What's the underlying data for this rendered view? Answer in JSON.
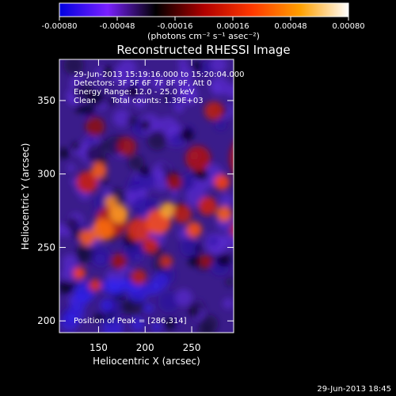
{
  "colorbar": {
    "tick_labels": [
      "-0.00080",
      "-0.00048",
      "-0.00016",
      "0.00016",
      "0.00048",
      "0.00080"
    ],
    "tick_values": [
      -0.0008,
      -0.00048,
      -0.00016,
      0.00016,
      0.00048,
      0.0008
    ],
    "range": [
      -0.0008,
      0.0008
    ],
    "units": "(photons cm⁻² s⁻¹ asec⁻²)",
    "colors": [
      "#0000e0",
      "#7a20ff",
      "#000000",
      "#b00000",
      "#ff3800",
      "#ffa000",
      "#ffffff"
    ]
  },
  "chart_data": {
    "type": "heatmap",
    "title": "Reconstructed RHESSI Image",
    "xlabel": "Heliocentric X (arcsec)",
    "ylabel": "Heliocentric Y (arcsec)",
    "xlim": [
      108,
      295
    ],
    "ylim": [
      192,
      378
    ],
    "x_ticks": [
      150,
      200,
      250
    ],
    "y_ticks": [
      200,
      250,
      300,
      350
    ],
    "x_tick_labels": [
      "150",
      "200",
      "250"
    ],
    "y_tick_labels": [
      "200",
      "250",
      "300",
      "350"
    ],
    "info_lines": [
      "29-Jun-2013 15:19:16.000 to 15:20:04.000",
      "Detectors: 3F 5F 6F 7F 8F 9F, Att 0",
      "Energy Range: 12.0 - 25.0 keV",
      "Clean      Total counts: 1.39E+03"
    ],
    "peak_label": "Position of Peak = [286,314]",
    "peak": [
      286,
      314
    ]
  },
  "footer": {
    "timestamp": "29-Jun-2013 18:45"
  }
}
